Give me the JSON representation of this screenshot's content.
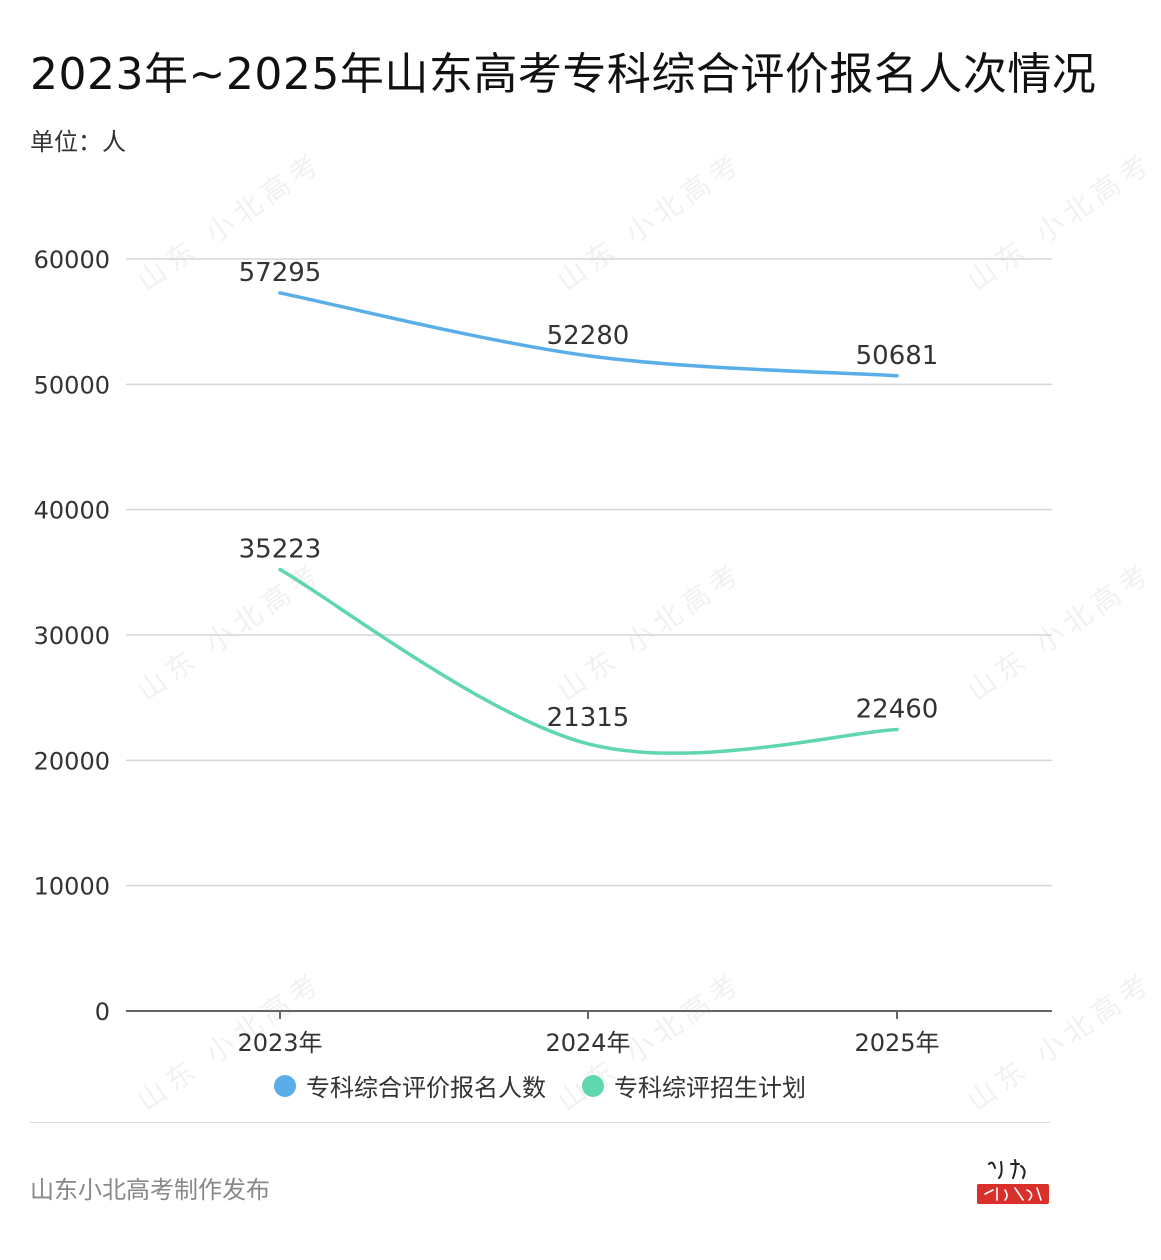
{
  "title": "2023年~2025年山东高考专科综合评价报名人次情况",
  "unit_label": "单位：人",
  "footer": "山东小北高考制作发布",
  "watermark_text": "山东 小北高考",
  "colors": {
    "series1": "#5aaee8",
    "series2": "#5fd6ad",
    "grid": "#d6d6d6",
    "axis": "#666666",
    "logo_red": "#d9302c"
  },
  "chart_data": {
    "type": "line",
    "categories": [
      "2023年",
      "2024年",
      "2025年"
    ],
    "series": [
      {
        "name": "专科综合评价报名人数",
        "values": [
          57295,
          52280,
          50681
        ]
      },
      {
        "name": "专科综评招生计划",
        "values": [
          35223,
          21315,
          22460
        ]
      }
    ],
    "ylim": [
      0,
      60000
    ],
    "yticks": [
      "0",
      "10000",
      "20000",
      "30000",
      "40000",
      "50000",
      "60000"
    ],
    "smooth": true,
    "grid": true,
    "legend_position": "bottom"
  }
}
